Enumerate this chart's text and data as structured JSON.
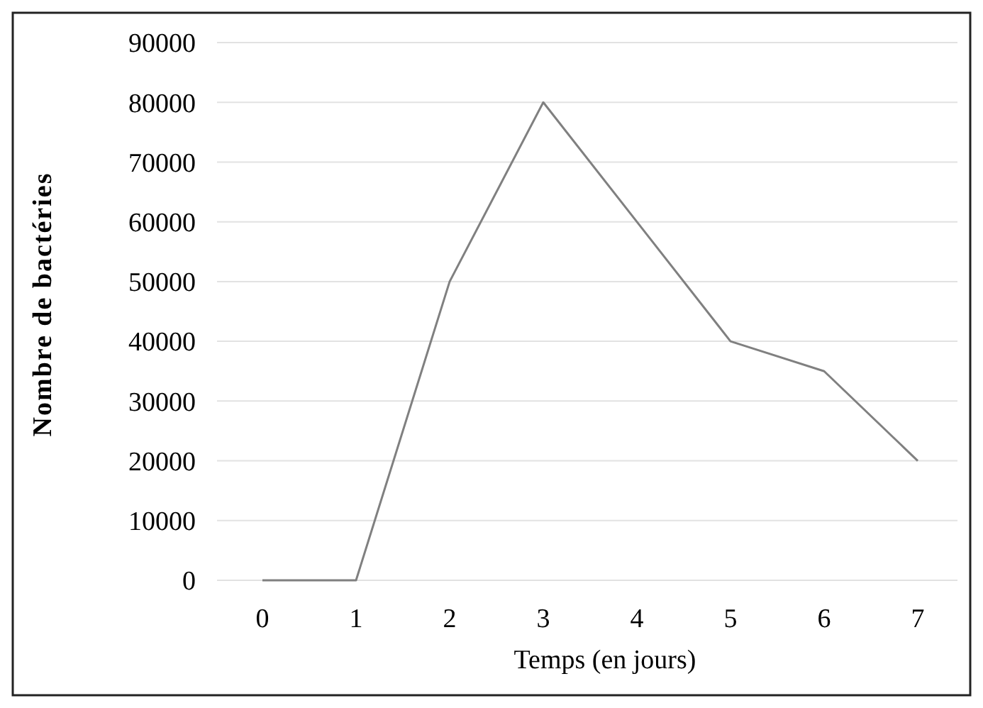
{
  "chart_data": {
    "type": "line",
    "xlabel": "Temps (en jours)",
    "ylabel": "Nombre de bactéries",
    "categories": [
      "0",
      "1",
      "2",
      "3",
      "4",
      "5",
      "6",
      "7"
    ],
    "series": [
      {
        "color": "#808080",
        "values": [
          0,
          0,
          50000,
          80000,
          60000,
          40000,
          35000,
          20000
        ]
      }
    ],
    "ylim": [
      0,
      90000
    ],
    "yticks": [
      0,
      10000,
      20000,
      30000,
      40000,
      50000,
      60000,
      70000,
      80000,
      90000
    ],
    "grid": "y",
    "marker": "none",
    "line_style": "solid"
  }
}
